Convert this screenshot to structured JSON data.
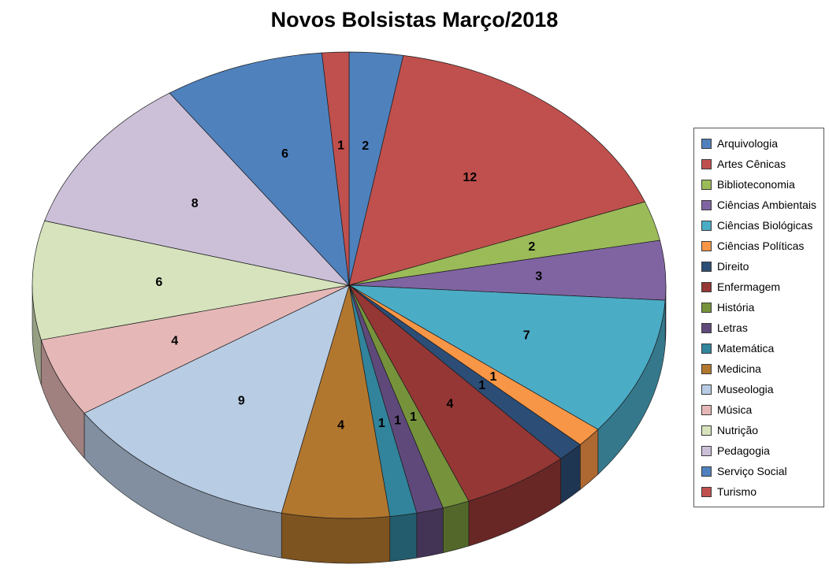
{
  "chart_data": {
    "type": "pie",
    "title": "Novos Bolsistas Março/2018",
    "categories": [
      "Arquivologia",
      "Artes Cênicas",
      "Biblioteconomia",
      "Ciências Ambientais",
      "Ciências Biológicas",
      "Ciências Políticas",
      "Direito",
      "Enfermagem",
      "História",
      "Letras",
      "Matemática",
      "Medicina",
      "Museologia",
      "Música",
      "Nutrição",
      "Pedagogia",
      "Serviço Social",
      "Turismo"
    ],
    "values": [
      2,
      12,
      2,
      3,
      7,
      1,
      1,
      4,
      1,
      1,
      1,
      4,
      9,
      4,
      6,
      8,
      6,
      1
    ],
    "colors": [
      "#4F81BD",
      "#C0504D",
      "#9BBB59",
      "#8064A2",
      "#4BACC6",
      "#F79646",
      "#2C4D75",
      "#953735",
      "#76933C",
      "#5F497A",
      "#31849B",
      "#B2772E",
      "#B8CCE4",
      "#E5B8B7",
      "#D6E3BC",
      "#CCC0D9",
      "#4F81BD",
      "#C0504D"
    ],
    "data_labels": "values",
    "effect": "3d",
    "start_angle_deg": 0,
    "direction": "clockwise",
    "legend_position": "right",
    "grid": false
  }
}
